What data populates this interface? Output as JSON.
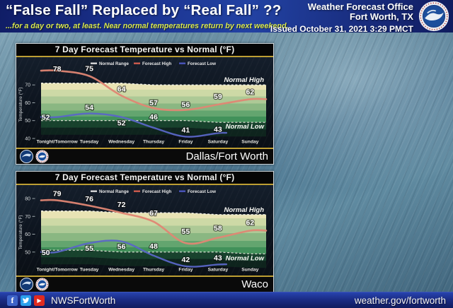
{
  "header": {
    "title": "“False Fall” Replaced by “Real Fall” ??",
    "subtitle": "...for a day or two, at least. Near normal temperatures return by next weekend.",
    "subtitle_color": "#d9e84f",
    "office_line1": "Weather Forecast Office",
    "office_line2": "Fort Worth, TX",
    "issued": "Issued October 31, 2021 3:29 PMCT"
  },
  "chart_data": [
    {
      "type": "line",
      "title": "7 Day Forecast Temperature vs Normal (°F)",
      "location": "Dallas/Fort Worth",
      "categories": [
        "Tonight/Tomorrow",
        "Tuesday",
        "Wednesday",
        "Thursday",
        "Friday",
        "Saturday",
        "Sunday"
      ],
      "series": [
        {
          "name": "Forecast High",
          "color": "#e08673",
          "values": [
            78,
            75,
            64,
            57,
            56,
            59,
            62
          ]
        },
        {
          "name": "Forecast Low",
          "color": "#5a66c6",
          "values": [
            52,
            54,
            52,
            46,
            41,
            43,
            null
          ]
        }
      ],
      "normal_range": {
        "name": "Normal Range",
        "high": [
          71,
          71,
          71,
          70,
          70,
          70,
          70
        ],
        "low": [
          50,
          50,
          50,
          50,
          50,
          49,
          49
        ]
      },
      "band_labels": {
        "high": "Normal High",
        "low": "Normal Low"
      },
      "legend": [
        "Normal Range",
        "Forecast High",
        "Forecast Low"
      ],
      "legend_colors": [
        "#d8d8d8",
        "#cf5c4e",
        "#4a55bb"
      ],
      "ylabel": "Temperature (°F)",
      "yticks": [
        70,
        60,
        50,
        40
      ],
      "ylim": [
        38,
        80
      ],
      "grid": false,
      "legend_position": "top-center"
    },
    {
      "type": "line",
      "title": "7 Day Forecast Temperature vs Normal (°F)",
      "location": "Waco",
      "categories": [
        "Tonight/Tomorrow",
        "Tuesday",
        "Wednesday",
        "Thursday",
        "Friday",
        "Saturday",
        "Sunday"
      ],
      "series": [
        {
          "name": "Forecast High",
          "color": "#e08673",
          "values": [
            79,
            76,
            72,
            67,
            55,
            58,
            62
          ]
        },
        {
          "name": "Forecast Low",
          "color": "#5a66c6",
          "values": [
            50,
            55,
            56,
            48,
            42,
            43,
            null
          ]
        }
      ],
      "normal_range": {
        "name": "Normal Range",
        "high": [
          73,
          73,
          72,
          72,
          72,
          71,
          71
        ],
        "low": [
          51,
          51,
          50,
          50,
          50,
          50,
          49
        ]
      },
      "band_labels": {
        "high": "Normal High",
        "low": "Normal Low"
      },
      "legend": [
        "Normal Range",
        "Forecast High",
        "Forecast Low"
      ],
      "legend_colors": [
        "#d8d8d8",
        "#cf5c4e",
        "#4a55bb"
      ],
      "ylabel": "Temperature (°F)",
      "yticks": [
        80,
        70,
        60,
        50
      ],
      "ylim": [
        40,
        82
      ],
      "grid": false,
      "legend_position": "top-center"
    }
  ],
  "footer": {
    "social_handle": "NWSFortWorth",
    "website": "weather.gov/fortworth",
    "facebook_color": "#3d63c8",
    "twitter_color": "#2ba0ed",
    "youtube_color": "#e02a20"
  }
}
